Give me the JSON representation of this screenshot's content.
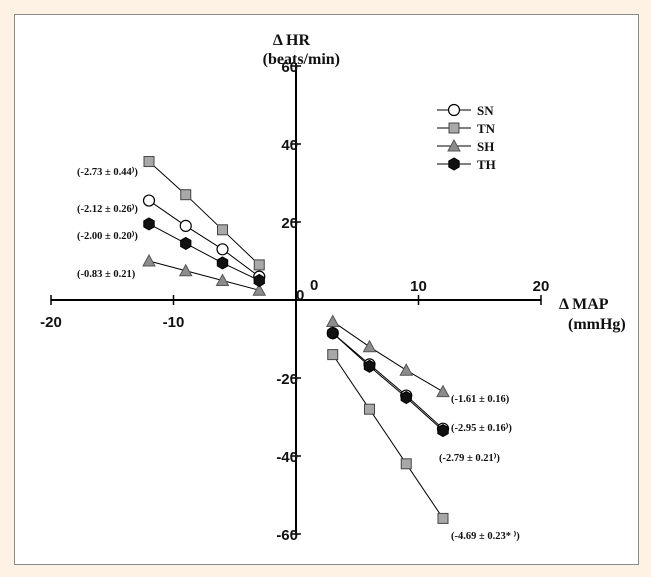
{
  "chart_data": {
    "type": "scatter",
    "ylabel": "Δ HR",
    "ylabel_unit": "(beats/min)",
    "xlabel": "Δ MAP",
    "xlabel_unit": "(mmHg)",
    "xlim": [
      -20,
      20
    ],
    "ylim": [
      -60,
      60
    ],
    "x_ticks": [
      -20,
      -10,
      0,
      10,
      20
    ],
    "y_ticks": [
      -60,
      -40,
      -20,
      0,
      20,
      40,
      60
    ],
    "x_tick_labels": [
      "-20",
      "-10",
      "0",
      "10",
      "20"
    ],
    "y_tick_labels": [
      "-60",
      "-40",
      "-20",
      "0",
      "20",
      "40",
      "60"
    ],
    "origin_label": "0",
    "grid": false,
    "legend_position": "top-right",
    "series": [
      {
        "name": "SN",
        "marker": "circle",
        "color": "#ffffff",
        "neg": {
          "x": [
            -12,
            -9,
            -6,
            -3
          ],
          "y": [
            25.5,
            19,
            13,
            6
          ]
        },
        "pos": {
          "x": [
            3,
            6,
            9,
            12
          ],
          "y": [
            -8.5,
            -16.5,
            -24.5,
            -33
          ]
        }
      },
      {
        "name": "TN",
        "marker": "square",
        "color": "#a8a8a8",
        "neg": {
          "x": [
            -12,
            -9,
            -6,
            -3
          ],
          "y": [
            35.5,
            27,
            18,
            9
          ]
        },
        "pos": {
          "x": [
            3,
            6,
            9,
            12
          ],
          "y": [
            -14,
            -28,
            -42,
            -56
          ]
        }
      },
      {
        "name": "SH",
        "marker": "triangle",
        "color": "#8c8c8c",
        "neg": {
          "x": [
            -12,
            -9,
            -6,
            -3
          ],
          "y": [
            10,
            7.5,
            5,
            2.5
          ]
        },
        "pos": {
          "x": [
            3,
            6,
            9,
            12
          ],
          "y": [
            -5.5,
            -12,
            -18,
            -23.5
          ]
        }
      },
      {
        "name": "TH",
        "marker": "hexagon",
        "color": "#111111",
        "neg": {
          "x": [
            -12,
            -9,
            -6,
            -3
          ],
          "y": [
            19.5,
            14.5,
            9.5,
            5
          ]
        },
        "pos": {
          "x": [
            3,
            6,
            9,
            12
          ],
          "y": [
            -8.5,
            -17,
            -25,
            -33.5
          ]
        }
      }
    ],
    "annotations": {
      "tn_neg": "(-2.73 ± 0.44⁾)",
      "sn_neg": "(-2.12 ± 0.26⁾)",
      "th_neg": "(-2.00 ± 0.20⁾)",
      "sh_neg": "(-0.83 ± 0.21)",
      "sh_pos": "(-1.61 ± 0.16)",
      "sn_pos": "(-2.95 ± 0.16⁾)",
      "th_pos": "(-2.79 ± 0.21⁾)",
      "tn_pos": "(-4.69 ± 0.23* ⁾)"
    }
  }
}
